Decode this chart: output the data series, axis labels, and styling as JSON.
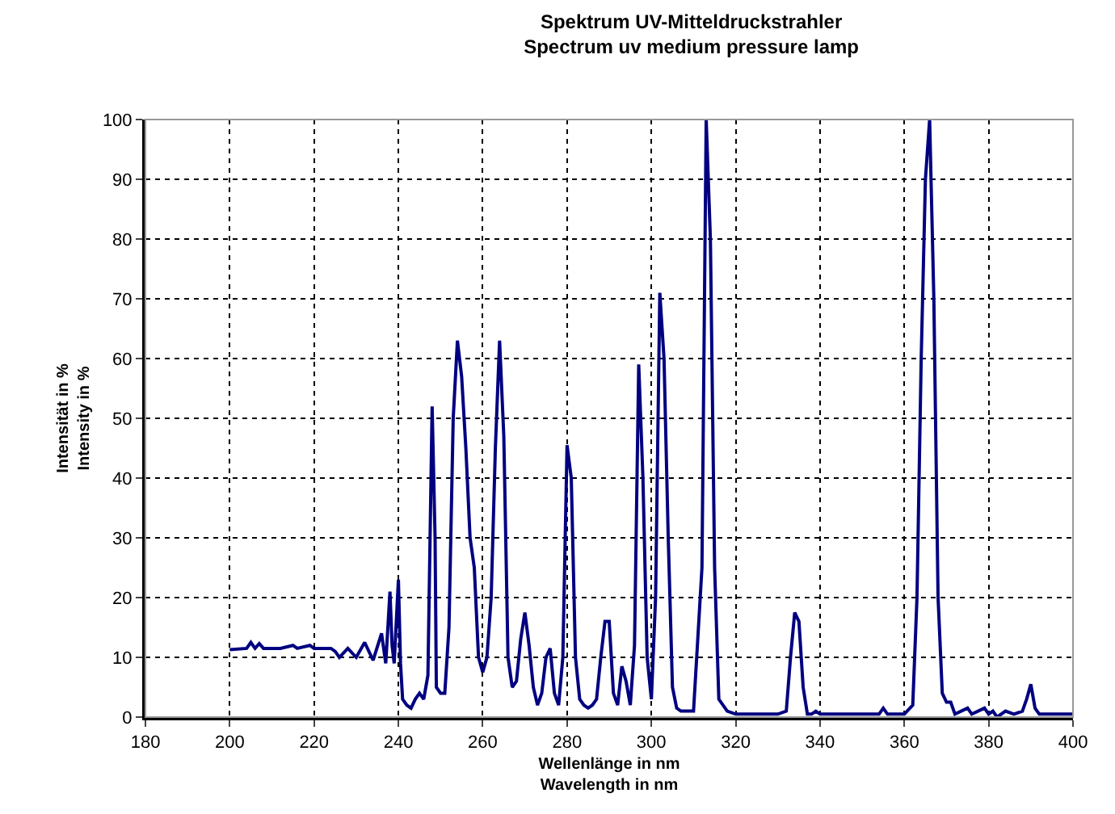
{
  "chart_data": {
    "type": "line",
    "title": "Spektrum UV-Mitteldruckstrahler\nSpectrum uv medium pressure lamp",
    "xlabel": "Wellenlänge in nm\nWavelength in nm",
    "ylabel": "Intensität in %\nIntensity in %",
    "x": [
      200,
      204,
      205,
      206,
      207,
      208,
      212,
      215,
      216,
      219,
      220,
      224,
      225,
      226,
      228,
      230,
      232,
      233,
      234,
      236,
      237,
      238,
      238.5,
      239,
      240,
      240.5,
      241,
      242,
      243,
      244,
      245,
      246,
      247,
      248,
      248.7,
      249,
      250,
      251,
      252,
      253,
      254,
      255,
      256,
      257,
      258,
      259,
      260,
      261,
      262,
      263,
      264,
      265,
      266,
      267,
      268,
      269,
      270,
      271,
      272,
      273,
      274,
      275,
      276,
      277,
      278,
      279,
      280,
      281,
      282,
      283,
      284,
      285,
      286,
      287,
      288,
      289,
      290,
      291,
      292,
      293,
      294,
      295,
      296,
      297,
      298,
      299,
      300,
      301,
      302,
      303,
      304,
      305,
      306,
      307,
      310,
      312,
      313,
      314,
      315,
      316,
      318,
      320,
      330,
      332,
      333,
      334,
      335,
      336,
      337,
      338,
      339,
      340,
      345,
      354,
      355,
      356,
      360,
      362,
      363,
      364,
      365,
      366,
      367,
      368,
      369,
      370,
      371,
      372,
      375,
      376,
      379,
      380,
      381,
      382,
      384,
      386,
      388,
      389,
      390,
      391,
      392,
      400
    ],
    "series": [
      {
        "color": "#000080",
        "values": [
          11.3,
          11.5,
          12.5,
          11.5,
          12.3,
          11.5,
          11.5,
          12,
          11.5,
          12,
          11.5,
          11.5,
          11,
          10,
          11.5,
          10,
          12.5,
          11,
          9.5,
          14,
          9,
          21,
          12,
          9,
          23,
          9,
          3,
          2,
          1.5,
          3,
          4,
          3,
          7,
          52,
          30,
          5,
          4,
          4,
          15,
          50,
          63,
          57,
          45,
          30,
          25,
          10,
          7.5,
          10,
          20,
          45,
          63,
          47,
          10,
          5,
          6,
          13,
          17.5,
          12,
          5,
          2,
          4,
          10,
          11.5,
          4,
          2,
          10,
          45.5,
          40,
          10,
          3,
          2,
          1.5,
          2,
          3,
          10,
          16,
          16,
          4,
          2,
          8.5,
          6,
          2,
          12,
          59,
          40,
          10,
          3,
          20,
          71,
          60,
          30,
          5,
          1.5,
          1,
          1,
          25,
          100,
          80,
          25,
          3,
          1,
          0.5,
          0.5,
          1,
          10,
          17.5,
          16,
          5,
          0.5,
          0.5,
          1,
          0.5,
          0.5,
          0.5,
          1.5,
          0.5,
          0.5,
          2,
          20,
          60,
          90,
          100,
          70,
          20,
          4,
          2.5,
          2.5,
          0.5,
          1.5,
          0.5,
          1.5,
          0.5,
          1,
          0,
          1,
          0.5,
          1,
          3,
          5.5,
          1.5,
          0.5,
          0.5
        ]
      }
    ],
    "xlim": [
      180,
      400
    ],
    "xticks": [
      180,
      200,
      220,
      240,
      260,
      280,
      300,
      320,
      340,
      360,
      380,
      400
    ],
    "ylim": [
      0,
      100
    ],
    "yticks": [
      0,
      10,
      20,
      30,
      40,
      50,
      60,
      70,
      80,
      90,
      100
    ],
    "grid": true,
    "marker": "none",
    "line_style": "solid"
  }
}
